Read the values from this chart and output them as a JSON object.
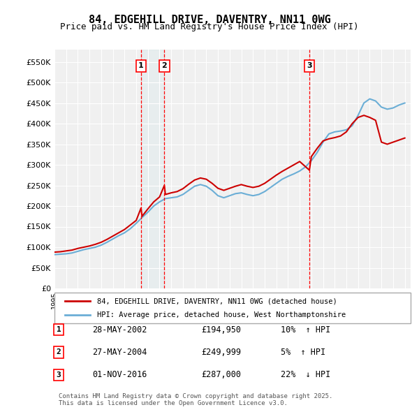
{
  "title1": "84, EDGEHILL DRIVE, DAVENTRY, NN11 0WG",
  "title2": "Price paid vs. HM Land Registry's House Price Index (HPI)",
  "ylabel_ticks": [
    "£0",
    "£50K",
    "£100K",
    "£150K",
    "£200K",
    "£250K",
    "£300K",
    "£350K",
    "£400K",
    "£450K",
    "£500K",
    "£550K"
  ],
  "ylabel_values": [
    0,
    50000,
    100000,
    150000,
    200000,
    250000,
    300000,
    350000,
    400000,
    450000,
    500000,
    550000
  ],
  "hpi_color": "#6baed6",
  "price_color": "#cc0000",
  "background_color": "#f0f0f0",
  "legend1": "84, EDGEHILL DRIVE, DAVENTRY, NN11 0WG (detached house)",
  "legend2": "HPI: Average price, detached house, West Northamptonshire",
  "transactions": [
    {
      "label": "1",
      "date": "28-MAY-2002",
      "price": 194950,
      "pct": "10%",
      "dir": "↑",
      "x": 2002.41
    },
    {
      "label": "2",
      "date": "27-MAY-2004",
      "price": 249999,
      "pct": "5%",
      "dir": "↑",
      "x": 2004.41
    },
    {
      "label": "3",
      "date": "01-NOV-2016",
      "price": 287000,
      "pct": "22%",
      "dir": "↓",
      "x": 2016.83
    }
  ],
  "footer": "Contains HM Land Registry data © Crown copyright and database right 2025.\nThis data is licensed under the Open Government Licence v3.0.",
  "hpi_x": [
    1995,
    1995.5,
    1996,
    1996.5,
    1997,
    1997.5,
    1998,
    1998.5,
    1999,
    1999.5,
    2000,
    2000.5,
    2001,
    2001.5,
    2002,
    2002.5,
    2003,
    2003.5,
    2004,
    2004.5,
    2005,
    2005.5,
    2006,
    2006.5,
    2007,
    2007.5,
    2008,
    2008.5,
    2009,
    2009.5,
    2010,
    2010.5,
    2011,
    2011.5,
    2012,
    2012.5,
    2013,
    2013.5,
    2014,
    2014.5,
    2015,
    2015.5,
    2016,
    2016.5,
    2017,
    2017.5,
    2018,
    2018.5,
    2019,
    2019.5,
    2020,
    2020.5,
    2021,
    2021.5,
    2022,
    2022.5,
    2023,
    2023.5,
    2024,
    2024.5,
    2025
  ],
  "hpi_y": [
    82000,
    83000,
    84000,
    86000,
    90000,
    94000,
    97000,
    100000,
    105000,
    112000,
    120000,
    128000,
    135000,
    145000,
    158000,
    172000,
    185000,
    200000,
    210000,
    218000,
    220000,
    222000,
    228000,
    238000,
    248000,
    252000,
    248000,
    238000,
    225000,
    220000,
    225000,
    230000,
    232000,
    228000,
    225000,
    228000,
    235000,
    245000,
    255000,
    265000,
    272000,
    278000,
    285000,
    295000,
    310000,
    330000,
    355000,
    375000,
    380000,
    382000,
    385000,
    395000,
    420000,
    450000,
    460000,
    455000,
    440000,
    435000,
    438000,
    445000,
    450000
  ],
  "price_x": [
    1995,
    1995.5,
    1996,
    1996.5,
    1997,
    1997.5,
    1998,
    1998.5,
    1999,
    1999.5,
    2000,
    2000.5,
    2001,
    2001.5,
    2002,
    2002.41,
    2002.5,
    2003,
    2003.5,
    2004,
    2004.41,
    2004.5,
    2005,
    2005.5,
    2006,
    2006.5,
    2007,
    2007.5,
    2008,
    2008.5,
    2009,
    2009.5,
    2010,
    2010.5,
    2011,
    2011.5,
    2012,
    2012.5,
    2013,
    2013.5,
    2014,
    2014.5,
    2015,
    2015.5,
    2016,
    2016.83,
    2017,
    2017.5,
    2018,
    2018.5,
    2019,
    2019.5,
    2020,
    2020.5,
    2021,
    2021.5,
    2022,
    2022.5,
    2023,
    2023.5,
    2024,
    2024.5,
    2025
  ],
  "price_y": [
    88000,
    89000,
    91000,
    93000,
    97000,
    100000,
    103000,
    107000,
    112000,
    119000,
    127000,
    135000,
    143000,
    154000,
    165000,
    194950,
    175000,
    193000,
    210000,
    222000,
    249999,
    228000,
    232000,
    235000,
    242000,
    253000,
    263000,
    268000,
    265000,
    255000,
    243000,
    238000,
    243000,
    248000,
    252000,
    248000,
    245000,
    248000,
    255000,
    265000,
    275000,
    284000,
    292000,
    300000,
    308000,
    287000,
    320000,
    340000,
    358000,
    363000,
    366000,
    370000,
    380000,
    400000,
    415000,
    420000,
    415000,
    408000,
    355000,
    350000,
    355000,
    360000,
    365000
  ]
}
